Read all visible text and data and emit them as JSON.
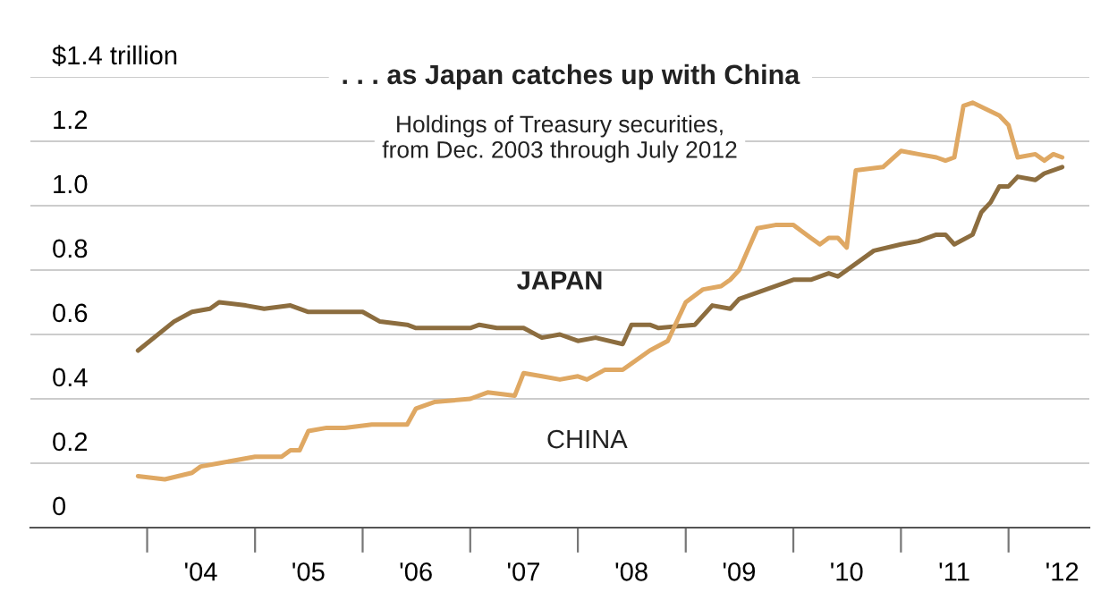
{
  "chart_data": {
    "type": "line",
    "title": ". . . as Japan catches up with China",
    "subtitle": "Holdings of Treasury securities,\nfrom Dec. 2003 through July 2012",
    "series": [
      {
        "name": "JAPAN",
        "color": "#8c6d3f",
        "x": [
          "2003-12",
          "2004-04",
          "2004-06",
          "2004-08",
          "2004-09",
          "2004-12",
          "2005-02",
          "2005-05",
          "2005-07",
          "2005-10",
          "2006-01",
          "2006-03",
          "2006-06",
          "2006-07",
          "2006-10",
          "2007-01",
          "2007-02",
          "2007-04",
          "2007-07",
          "2007-09",
          "2007-11",
          "2008-01",
          "2008-03",
          "2008-06",
          "2008-07",
          "2008-09",
          "2008-10",
          "2009-02",
          "2009-04",
          "2009-06",
          "2009-07",
          "2009-10",
          "2010-01",
          "2010-03",
          "2010-05",
          "2010-06",
          "2010-10",
          "2011-01",
          "2011-03",
          "2011-05",
          "2011-06",
          "2011-07",
          "2011-09",
          "2011-10",
          "2011-11",
          "2011-12",
          "2012-01",
          "2012-02",
          "2012-04",
          "2012-05",
          "2012-07"
        ],
        "values": [
          0.55,
          0.64,
          0.67,
          0.68,
          0.7,
          0.69,
          0.68,
          0.69,
          0.67,
          0.67,
          0.67,
          0.64,
          0.63,
          0.62,
          0.62,
          0.62,
          0.63,
          0.62,
          0.62,
          0.59,
          0.6,
          0.58,
          0.59,
          0.57,
          0.63,
          0.63,
          0.62,
          0.63,
          0.69,
          0.68,
          0.71,
          0.74,
          0.77,
          0.77,
          0.79,
          0.78,
          0.86,
          0.88,
          0.89,
          0.91,
          0.91,
          0.88,
          0.91,
          0.98,
          1.01,
          1.06,
          1.06,
          1.09,
          1.08,
          1.1,
          1.12
        ]
      },
      {
        "name": "CHINA",
        "color": "#dfa863",
        "x": [
          "2003-12",
          "2004-03",
          "2004-06",
          "2004-07",
          "2004-09",
          "2005-01",
          "2005-04",
          "2005-05",
          "2005-06",
          "2005-07",
          "2005-09",
          "2005-11",
          "2006-02",
          "2006-06",
          "2006-07",
          "2006-09",
          "2007-01",
          "2007-03",
          "2007-06",
          "2007-07",
          "2007-09",
          "2007-11",
          "2008-01",
          "2008-02",
          "2008-04",
          "2008-06",
          "2008-07",
          "2008-09",
          "2008-11",
          "2009-01",
          "2009-03",
          "2009-05",
          "2009-06",
          "2009-07",
          "2009-09",
          "2009-11",
          "2010-01",
          "2010-03",
          "2010-04",
          "2010-05",
          "2010-06",
          "2010-07",
          "2010-08",
          "2010-11",
          "2011-01",
          "2011-03",
          "2011-05",
          "2011-06",
          "2011-07",
          "2011-08",
          "2011-09",
          "2011-12",
          "2012-01",
          "2012-02",
          "2012-04",
          "2012-05",
          "2012-06",
          "2012-07"
        ],
        "values": [
          0.16,
          0.15,
          0.17,
          0.19,
          0.2,
          0.22,
          0.22,
          0.24,
          0.24,
          0.3,
          0.31,
          0.31,
          0.32,
          0.32,
          0.37,
          0.39,
          0.4,
          0.42,
          0.41,
          0.48,
          0.47,
          0.46,
          0.47,
          0.46,
          0.49,
          0.49,
          0.51,
          0.55,
          0.58,
          0.7,
          0.74,
          0.75,
          0.77,
          0.8,
          0.93,
          0.94,
          0.94,
          0.9,
          0.88,
          0.9,
          0.9,
          0.87,
          1.11,
          1.12,
          1.17,
          1.16,
          1.15,
          1.14,
          1.15,
          1.31,
          1.32,
          1.28,
          1.25,
          1.15,
          1.16,
          1.14,
          1.16,
          1.15
        ]
      }
    ],
    "xlim": [
      "2002-12",
      "2012-10"
    ],
    "xticks": [
      {
        "value": "2004-01",
        "label": null
      },
      {
        "value": "2004-07",
        "label": "'04"
      },
      {
        "value": "2005-01",
        "label": null
      },
      {
        "value": "2005-07",
        "label": "'05"
      },
      {
        "value": "2006-01",
        "label": null
      },
      {
        "value": "2006-07",
        "label": "'06"
      },
      {
        "value": "2007-01",
        "label": null
      },
      {
        "value": "2007-07",
        "label": "'07"
      },
      {
        "value": "2008-01",
        "label": null
      },
      {
        "value": "2008-07",
        "label": "'08"
      },
      {
        "value": "2009-01",
        "label": null
      },
      {
        "value": "2009-07",
        "label": "'09"
      },
      {
        "value": "2010-01",
        "label": null
      },
      {
        "value": "2010-07",
        "label": "'10"
      },
      {
        "value": "2011-01",
        "label": null
      },
      {
        "value": "2011-07",
        "label": "'11"
      },
      {
        "value": "2012-01",
        "label": null
      },
      {
        "value": "2012-07",
        "label": "'12"
      }
    ],
    "ylim": [
      0,
      1.4
    ],
    "yticks": [
      0,
      0.2,
      0.4,
      0.6,
      0.8,
      {
        "value": 1.0,
        "label": "1.0"
      },
      1.2,
      {
        "value": 1.4,
        "label": "$1.4 trillion"
      }
    ],
    "grid": "y"
  }
}
